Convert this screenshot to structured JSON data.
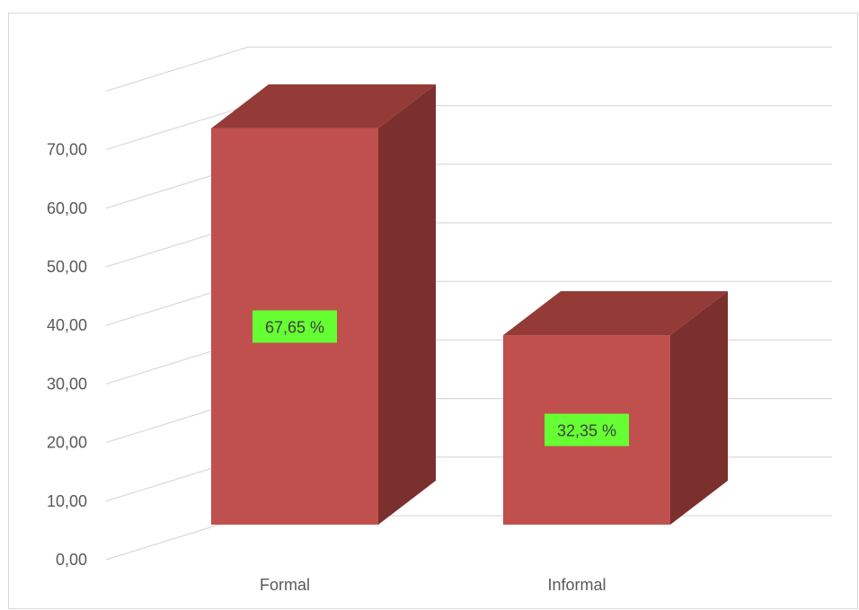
{
  "chart_data": {
    "type": "bar",
    "style": "3d-column",
    "categories": [
      "Formal",
      "Informal"
    ],
    "values": [
      67.65,
      32.35
    ],
    "data_labels": [
      "67,65 %",
      "32,35 %"
    ],
    "y_ticks": [
      "0,00",
      "10,00",
      "20,00",
      "30,00",
      "40,00",
      "50,00",
      "60,00",
      "70,00"
    ],
    "ylim": [
      0,
      80
    ],
    "grid": true,
    "legend": "none",
    "title": "",
    "xlabel": "",
    "ylabel": "",
    "colors": {
      "bar_front": "#c0504d",
      "bar_top": "#943a37",
      "bar_side": "#7b302e",
      "label_bg": "#66ff33",
      "grid": "#d9d9d9",
      "text": "#595959"
    }
  }
}
